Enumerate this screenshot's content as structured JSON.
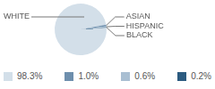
{
  "chart_data": {
    "type": "pie",
    "categories": [
      "WHITE",
      "ASIAN",
      "HISPANIC",
      "BLACK"
    ],
    "values": [
      98.3,
      1.0,
      0.6,
      0.2
    ],
    "value_labels": [
      "98.3%",
      "1.0%",
      "0.6%",
      "0.2%"
    ],
    "colors": [
      "#d3dfe9",
      "#6e8fad",
      "#a9bfd2",
      "#2c5b80"
    ],
    "legend": "bottom"
  }
}
